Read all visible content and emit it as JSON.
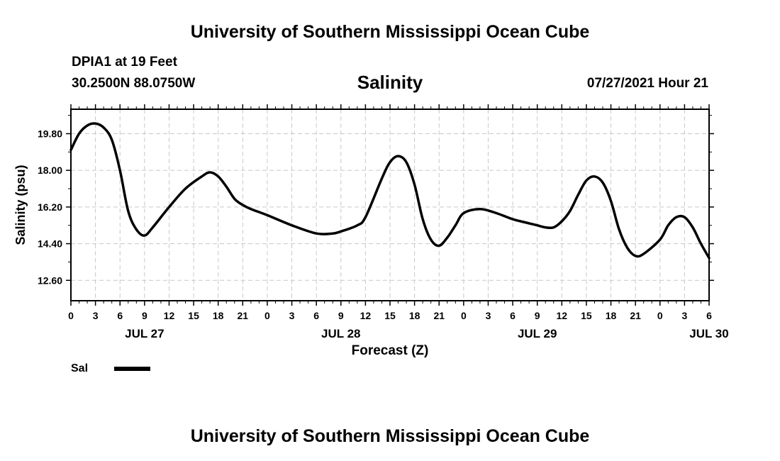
{
  "header": {
    "title": "University of Southern Mississippi Ocean Cube",
    "station": "DPIA1 at 19 Feet",
    "location": "30.2500N  88.0750W",
    "timestamp": "07/27/2021 Hour 21"
  },
  "footer": {
    "title": "University of Southern Mississippi Ocean Cube"
  },
  "chart_data": {
    "type": "line",
    "title": "Salinity",
    "xlabel": "Forecast (Z)",
    "ylabel": "Salinity (psu)",
    "ylim": [
      11.6,
      21.0
    ],
    "xlim": [
      0,
      78
    ],
    "grid": true,
    "legend_position": "bottom-left",
    "y_ticks": [
      "12.60",
      "14.40",
      "16.20",
      "18.00",
      "19.80"
    ],
    "x_tick_labels": [
      "0",
      "3",
      "6",
      "9",
      "12",
      "15",
      "18",
      "21",
      "0",
      "3",
      "6",
      "9",
      "12",
      "15",
      "18",
      "21",
      "0",
      "3",
      "6",
      "9",
      "12",
      "15",
      "18",
      "21",
      "0",
      "3",
      "6"
    ],
    "date_labels": [
      {
        "label": "JUL 27",
        "hour": 9
      },
      {
        "label": "JUL 28",
        "hour": 33
      },
      {
        "label": "JUL 29",
        "hour": 57
      },
      {
        "label": "JUL 30",
        "hour": 78
      }
    ],
    "series": [
      {
        "name": "Sal",
        "color": "#000000",
        "x": [
          0,
          1,
          2,
          3,
          4,
          5,
          6,
          7,
          8,
          9,
          10,
          12,
          14,
          16,
          17,
          18,
          19,
          20,
          21,
          22,
          24,
          27,
          30,
          32,
          33,
          35,
          36,
          38,
          39,
          40,
          41,
          42,
          43,
          44,
          45,
          46,
          47,
          48,
          50,
          52,
          54,
          56,
          57,
          58,
          59,
          60,
          61,
          62,
          63,
          64,
          65,
          66,
          67,
          68,
          69,
          70,
          72,
          73,
          74,
          75,
          76,
          77,
          78
        ],
        "y": [
          19.0,
          19.8,
          20.2,
          20.3,
          20.1,
          19.5,
          18.0,
          16.0,
          15.1,
          14.8,
          15.2,
          16.2,
          17.1,
          17.7,
          17.9,
          17.7,
          17.2,
          16.6,
          16.3,
          16.1,
          15.8,
          15.3,
          14.9,
          14.9,
          15.0,
          15.3,
          15.7,
          17.6,
          18.4,
          18.7,
          18.4,
          17.3,
          15.6,
          14.6,
          14.3,
          14.7,
          15.3,
          15.9,
          16.1,
          15.9,
          15.6,
          15.4,
          15.3,
          15.2,
          15.2,
          15.5,
          16.0,
          16.8,
          17.5,
          17.7,
          17.4,
          16.5,
          15.1,
          14.2,
          13.8,
          13.9,
          14.6,
          15.3,
          15.7,
          15.7,
          15.2,
          14.4,
          13.7
        ]
      }
    ]
  }
}
